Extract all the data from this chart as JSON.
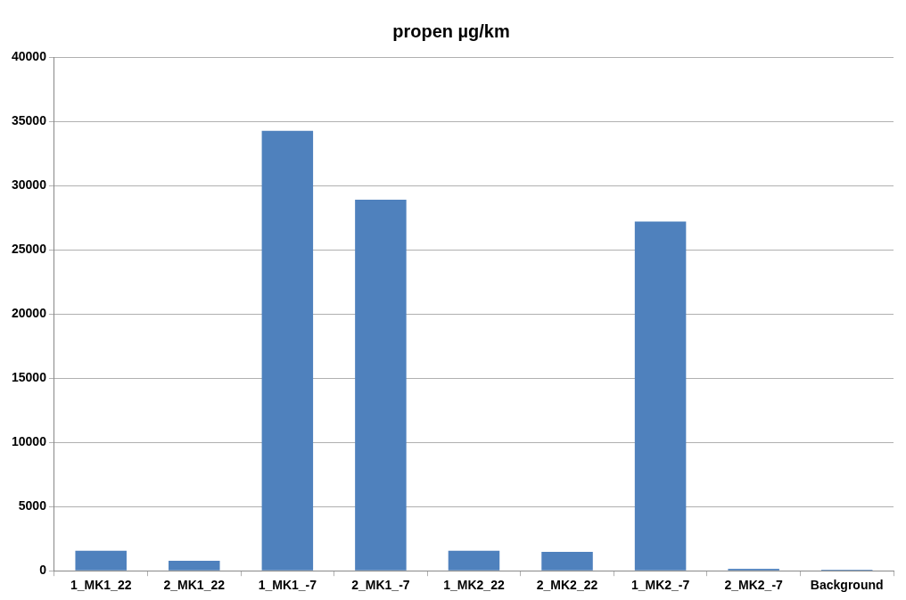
{
  "chart_data": {
    "type": "bar",
    "title": "propen µg/km",
    "categories": [
      "1_MK1_22",
      "2_MK1_22",
      "1_MK1_-7",
      "2_MK1_-7",
      "1_MK2_22",
      "2_MK2_22",
      "1_MK2_-7",
      "2_MK2_-7",
      "Background"
    ],
    "values": [
      1550,
      780,
      34250,
      28900,
      1550,
      1480,
      27200,
      150,
      80
    ],
    "color": "#4f81bd",
    "ylim": [
      0,
      40000
    ],
    "yticks": [
      0,
      5000,
      10000,
      15000,
      20000,
      25000,
      30000,
      35000,
      40000
    ],
    "grid": "y"
  }
}
